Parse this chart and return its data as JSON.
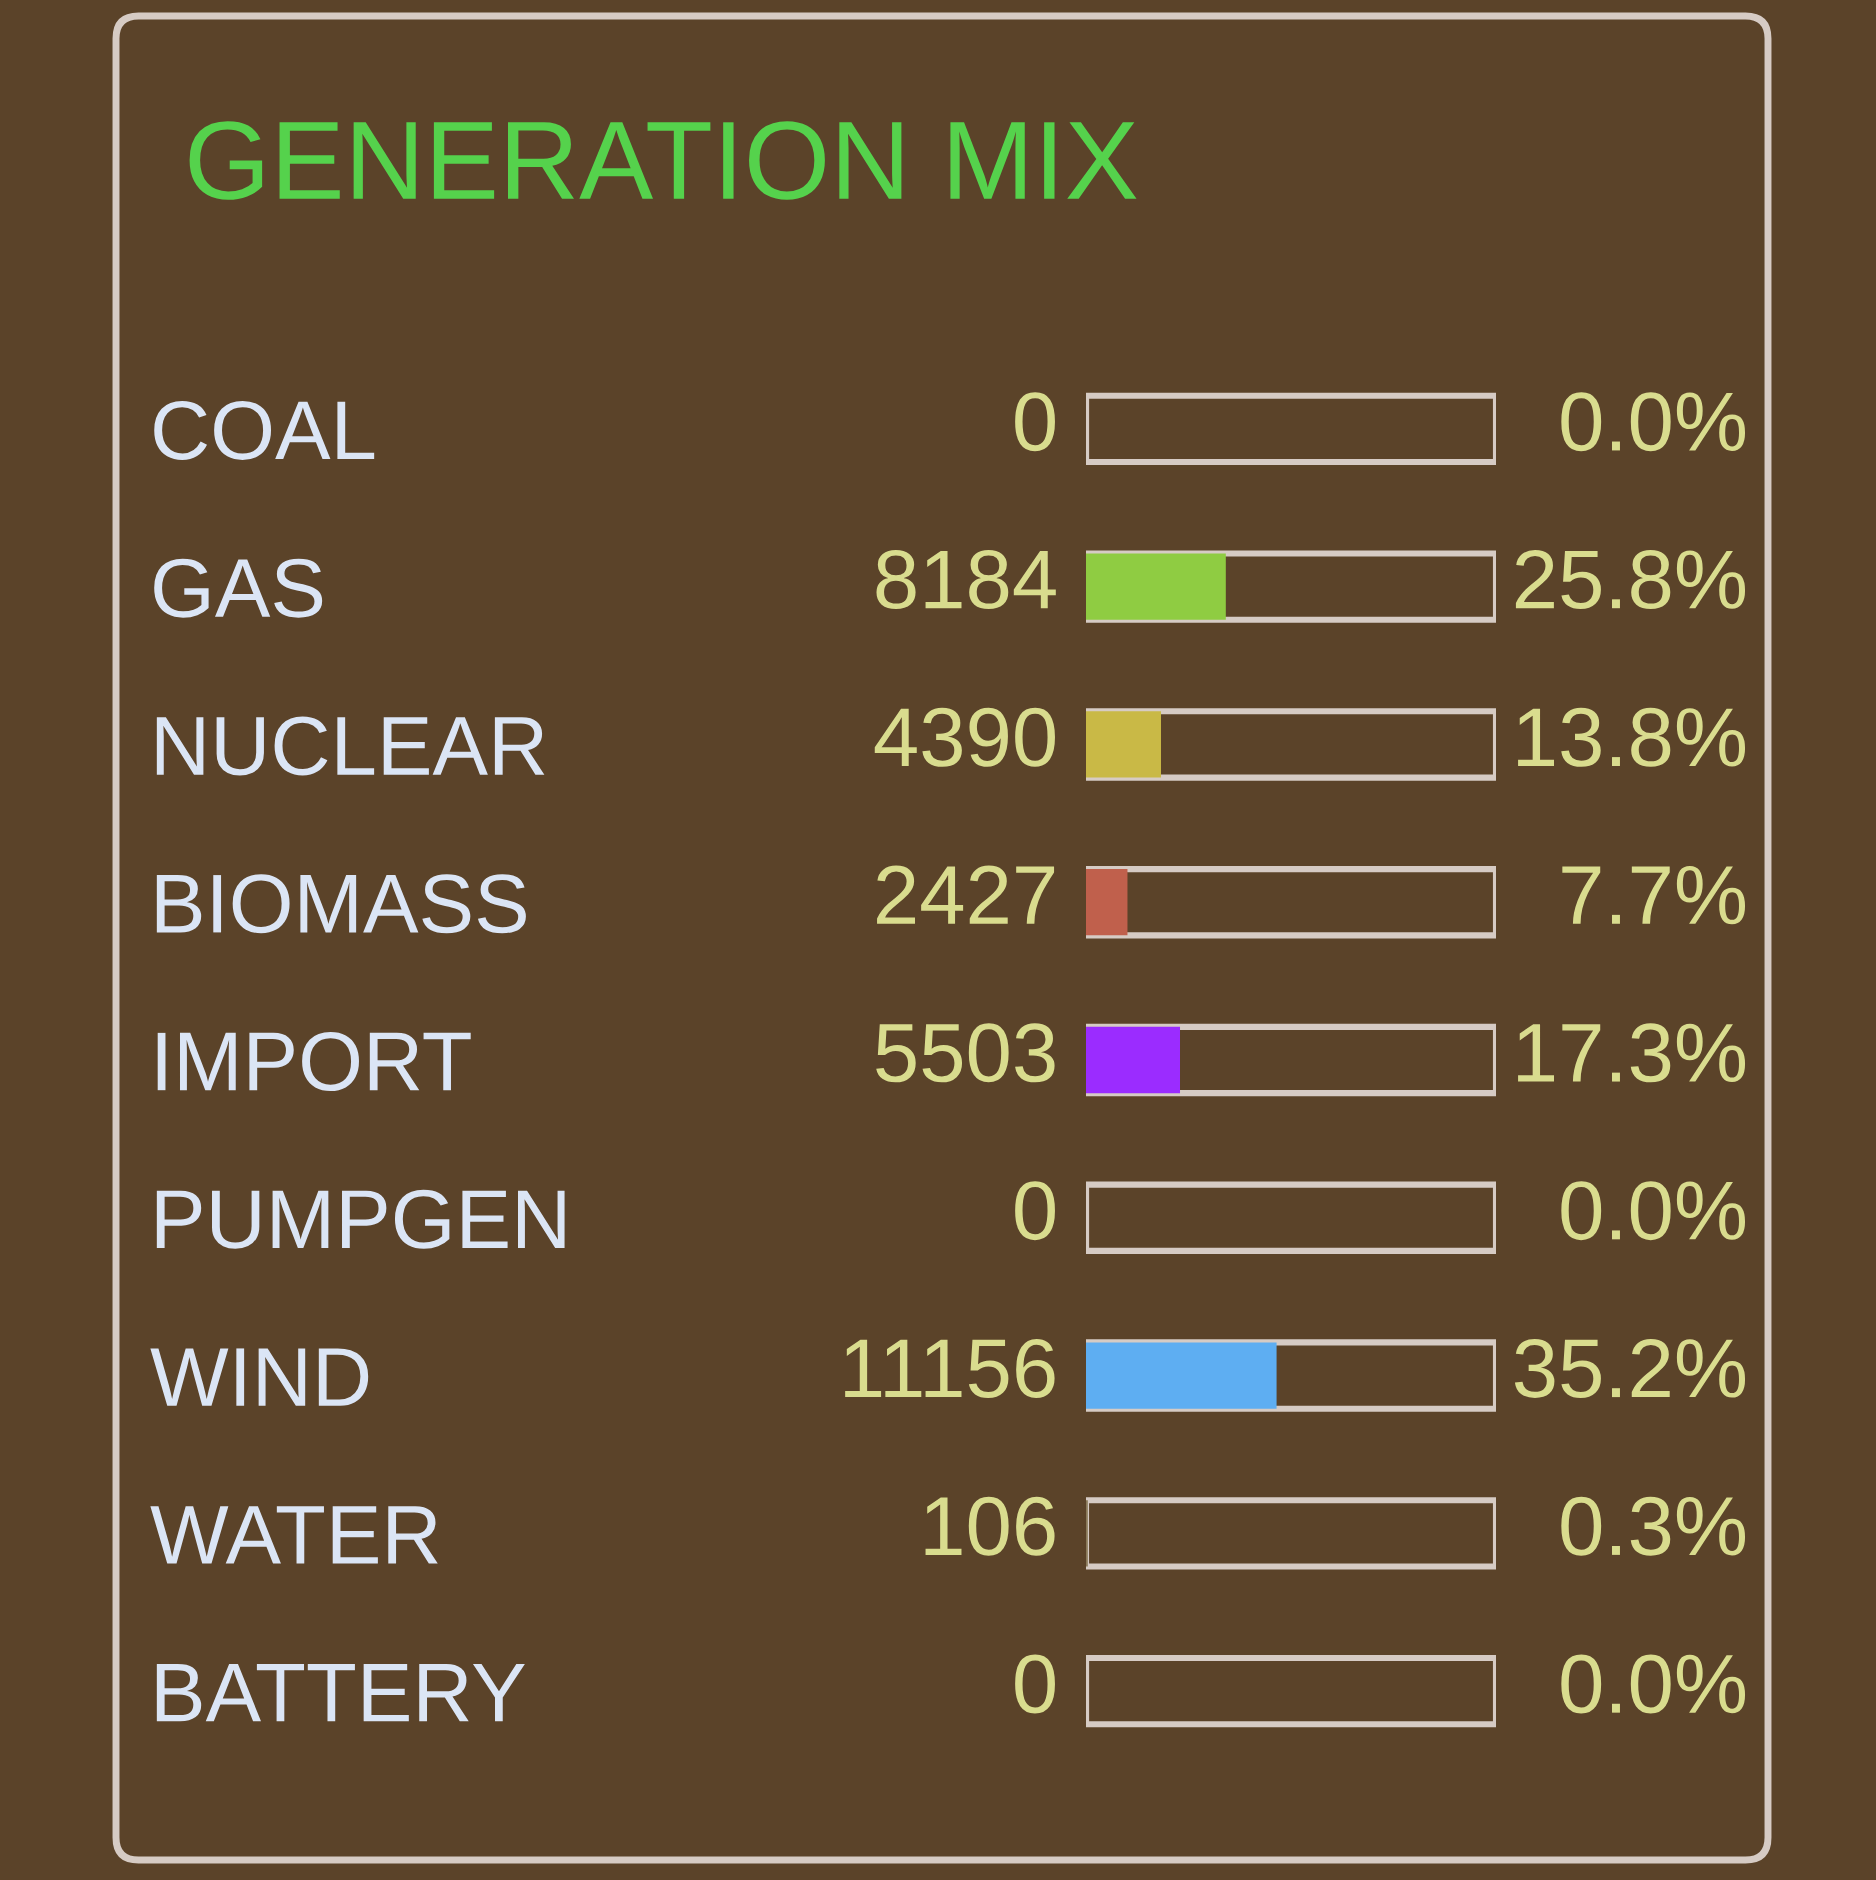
{
  "chart_data": {
    "type": "bar",
    "orientation": "horizontal",
    "title": "GENERATION MIX",
    "categories": [
      "COAL",
      "GAS",
      "NUCLEAR",
      "BIOMASS",
      "IMPORT",
      "PUMPGEN",
      "WIND",
      "WATER",
      "BATTERY"
    ],
    "values": [
      0,
      8184,
      4390,
      2427,
      5503,
      0,
      11156,
      106,
      0
    ],
    "colors": [
      null,
      "#8fcc42",
      "#c9b946",
      "#c0604c",
      "#9b2cff",
      null,
      "#5eaef2",
      "#8a7a5a",
      null
    ],
    "data_labels": true,
    "xlim": [
      0,
      24000
    ],
    "tick_labels": "y",
    "annotations": [
      "0.0%",
      "25.8%",
      "13.8%",
      "7.7%",
      "17.3%",
      "0.0%",
      "35.2%",
      "0.3%",
      "0.0%"
    ]
  }
}
